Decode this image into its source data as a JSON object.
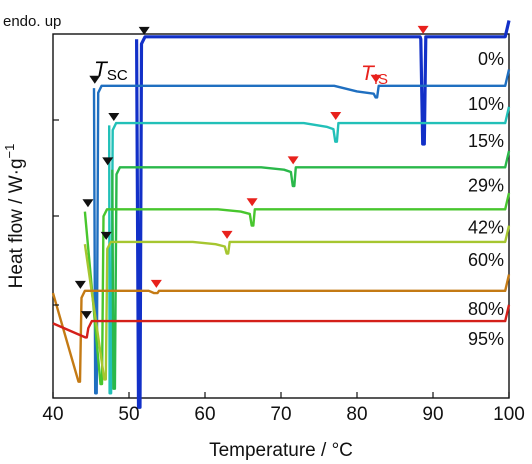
{
  "chart_data": {
    "type": "line",
    "xlabel": "Temperature / °C",
    "ylabel": "Heat flow / W·g",
    "ylabel_sup": "−1",
    "xlim": [
      40,
      100
    ],
    "x_ticks": [
      40,
      50,
      60,
      70,
      80,
      90,
      100
    ],
    "annotation": "endo. up",
    "tsc_label": {
      "main": "T",
      "sub": "SC",
      "color": "#111111"
    },
    "tis_label": {
      "main": "T",
      "sub": "IS",
      "color": "#e8211c"
    },
    "marker_colors": {
      "sc": "#111111",
      "is": "#e8211c"
    },
    "series": [
      {
        "name": "0%",
        "color": "#1230c8",
        "baseline": 7.75,
        "start": 51.0,
        "dip_x": 51.3,
        "dip_to": -0.2,
        "t_sc": 52.0,
        "t_is": 88.7,
        "pre_dip": 0,
        "is_drop": -2.3,
        "is_width": 0.4
      },
      {
        "name": "10%",
        "color": "#1f6fc0",
        "baseline": 6.7,
        "start": 45.4,
        "dip_x": 45.6,
        "dip_to": 0.1,
        "t_sc": 45.5,
        "t_is": 82.5,
        "pre_dip": 0.12,
        "is_drop": -0.25,
        "is_width": 2.5
      },
      {
        "name": "15%",
        "color": "#22c0b8",
        "baseline": 5.9,
        "start": 47.4,
        "dip_x": 47.5,
        "dip_to": 0.1,
        "t_sc": 48.0,
        "t_is": 77.2,
        "pre_dip": 0.08,
        "is_drop": -0.4,
        "is_width": 1.2
      },
      {
        "name": "29%",
        "color": "#2ab84a",
        "baseline": 4.95,
        "start": 47.8,
        "dip_x": 48.0,
        "dip_to": 0.2,
        "t_sc": 47.2,
        "t_is": 71.6,
        "pre_dip": 0.05,
        "is_drop": -0.4,
        "is_width": 1.2
      },
      {
        "name": "42%",
        "color": "#48c62e",
        "baseline": 4.05,
        "start": 44.2,
        "dip_x": 46.3,
        "dip_to": 0.3,
        "t_sc": 44.6,
        "t_is": 66.2,
        "pre_dip": 0.05,
        "is_drop": -0.35,
        "is_width": 1.5
      },
      {
        "name": "60%",
        "color": "#a6c630",
        "baseline": 3.35,
        "start": 44.2,
        "dip_x": 46.8,
        "dip_to": 0.4,
        "t_sc": 47.0,
        "t_is": 62.9,
        "pre_dip": 0.05,
        "is_drop": -0.25,
        "is_width": 1.5
      },
      {
        "name": "80%",
        "color": "#c47a14",
        "baseline": 2.3,
        "start": 40.0,
        "dip_x": 43.4,
        "dip_to": 0.35,
        "t_sc": 43.6,
        "t_is": 53.6,
        "pre_dip": 0.0,
        "is_drop": -0.05,
        "is_width": 1.0
      },
      {
        "name": "95%",
        "color": "#d4201a",
        "baseline": 1.65,
        "start": 40.0,
        "dip_x": 44.3,
        "dip_to": 1.3,
        "t_sc": 44.4,
        "t_is": null,
        "pre_dip": 0.0,
        "is_drop": 0,
        "is_width": 0
      }
    ]
  }
}
